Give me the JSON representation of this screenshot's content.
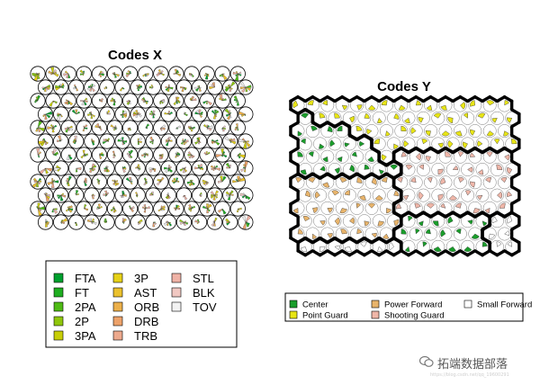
{
  "chart_data": [
    {
      "type": "circle-grid",
      "title": "Codes X",
      "grid": {
        "columns": 14,
        "rows": 12
      },
      "legend": {
        "entries": [
          {
            "label": "FTA",
            "color": "#00a02e"
          },
          {
            "label": "FT",
            "color": "#1fae21"
          },
          {
            "label": "2PA",
            "color": "#4fbb15"
          },
          {
            "label": "2P",
            "color": "#8fc70c"
          },
          {
            "label": "3PA",
            "color": "#c8cf08"
          },
          {
            "label": "3P",
            "color": "#e6d117"
          },
          {
            "label": "AST",
            "color": "#ebc12d"
          },
          {
            "label": "ORB",
            "color": "#ecb04a"
          },
          {
            "label": "DRB",
            "color": "#eda26a"
          },
          {
            "label": "TRB",
            "color": "#eda98d"
          },
          {
            "label": "STL",
            "color": "#efb2a6"
          },
          {
            "label": "BLK",
            "color": "#f1c8c2"
          },
          {
            "label": "TOV",
            "color": "#f2f2f2"
          }
        ]
      }
    },
    {
      "type": "hex-grid",
      "title": "Codes Y",
      "grid": {
        "columns": 15,
        "rows": 12
      },
      "legend": {
        "entries": [
          {
            "label": "Center",
            "color": "#1a9d2b"
          },
          {
            "label": "Point Guard",
            "color": "#e8e515"
          },
          {
            "label": "Power Forward",
            "color": "#e8b46b"
          },
          {
            "label": "Shooting Guard",
            "color": "#efb6a8"
          },
          {
            "label": "Small Forward",
            "color": "#ffffff"
          }
        ]
      },
      "cluster_map": [
        "PPPPPPPPPPPPPPP",
        "CPPPPPPPPPPPPPP",
        "CCCCPPPPPPPPPPP",
        "CCCCCPPPPPPPPPP",
        "CCCCCCPSSSSSSSS",
        "CCCCCCCSSSSSSSS",
        "FFFFFFFSSSSSSSS",
        "FFFFFFFSSSSSSSS",
        "FFFFFFFSSSSSSSS",
        "FFFFFFFCCCCCCWW",
        "FFFFFFFCCCCCCWW",
        "WWWWWWWCCCCCCWW"
      ]
    }
  ],
  "watermark": {
    "brand": "拓端数据部落",
    "url": "https://blog.csdn.net/qq_19600291"
  }
}
